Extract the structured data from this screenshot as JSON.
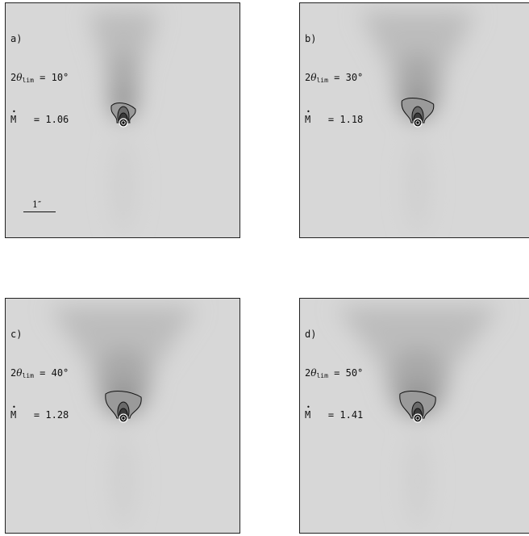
{
  "panels": [
    {
      "id": "a)",
      "theta_label": "2",
      "theta_sym": "θ",
      "theta_sub": "lim",
      "theta_value": "= 10°",
      "mdot_label": "M",
      "mdot_value": "= 1.06",
      "cone_spread": 0.25,
      "cloud_height": 0.55,
      "contour_scale": 0.55
    },
    {
      "id": "b)",
      "theta_label": "2",
      "theta_sym": "θ",
      "theta_sub": "lim",
      "theta_value": "= 30°",
      "mdot_label": "M",
      "mdot_value": "= 1.18",
      "cone_spread": 0.55,
      "cloud_height": 0.55,
      "contour_scale": 0.85
    },
    {
      "id": "c)",
      "theta_label": "2",
      "theta_sym": "θ",
      "theta_sub": "lim",
      "theta_value": "= 40°",
      "mdot_label": "M",
      "mdot_value": "= 1.28",
      "cone_spread": 0.75,
      "cloud_height": 0.55,
      "contour_scale": 1.0
    },
    {
      "id": "d)",
      "theta_label": "2",
      "theta_sym": "θ",
      "theta_sub": "lim",
      "theta_value": "= 50°",
      "mdot_label": "M",
      "mdot_value": "= 1.41",
      "cone_spread": 0.85,
      "cloud_height": 0.55,
      "contour_scale": 1.0
    }
  ],
  "scale_bar": {
    "label": "1″"
  }
}
